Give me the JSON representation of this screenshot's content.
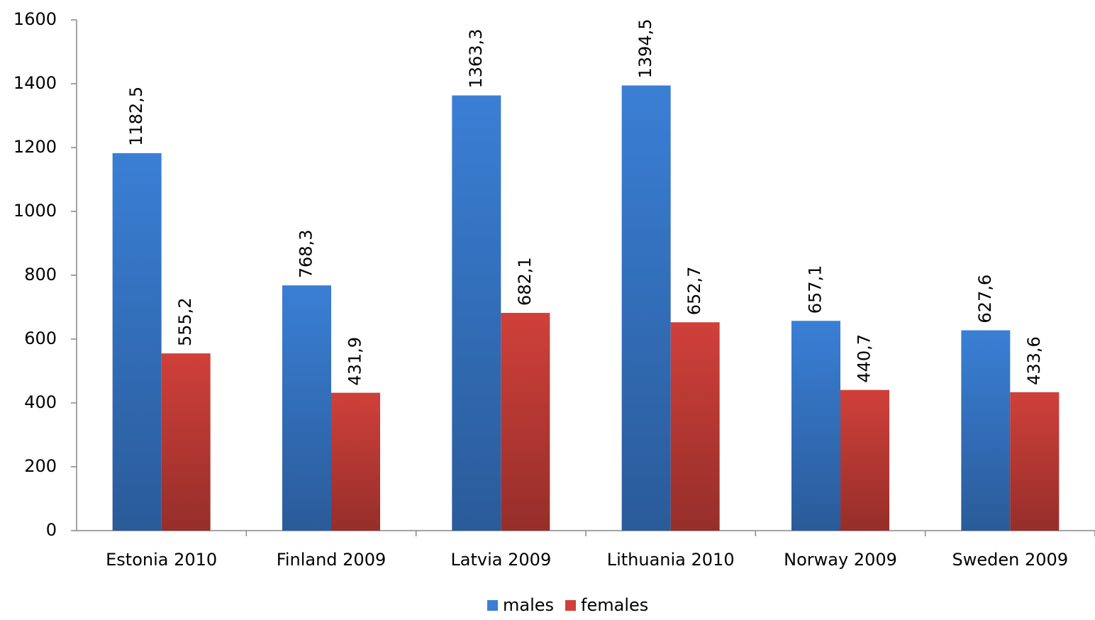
{
  "chart_data": {
    "type": "bar",
    "categories": [
      "Estonia 2010",
      "Finland 2009",
      "Latvia 2009",
      "Lithuania 2010",
      "Norway 2009",
      "Sweden 2009"
    ],
    "series": [
      {
        "name": "males",
        "color": "#3a7fd5",
        "values": [
          1182.5,
          768.3,
          1363.3,
          1394.5,
          657.1,
          627.6
        ],
        "value_labels": [
          "1182,5",
          "768,3",
          "1363,3",
          "1394,5",
          "657,1",
          "627,6"
        ]
      },
      {
        "name": "females",
        "color": "#d0403a",
        "values": [
          555.2,
          431.9,
          682.1,
          652.7,
          440.7,
          433.6
        ],
        "value_labels": [
          "555,2",
          "431,9",
          "682,1",
          "652,7",
          "440,7",
          "433,6"
        ]
      }
    ],
    "ylim": [
      0,
      1600
    ],
    "yticks": [
      0,
      200,
      400,
      600,
      800,
      1000,
      1200,
      1400,
      1600
    ],
    "grid": false,
    "legend": "bottom"
  }
}
